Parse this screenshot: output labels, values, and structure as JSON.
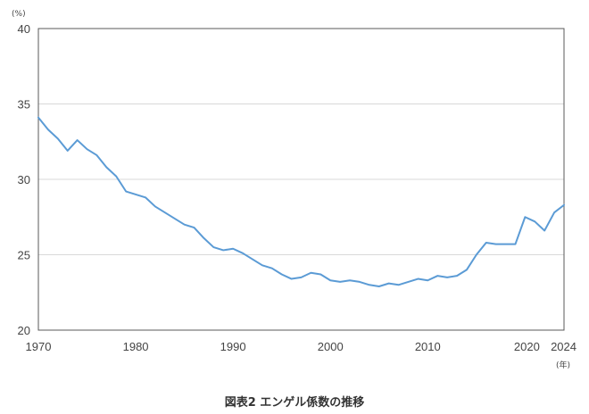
{
  "caption": "図表2 エンゲル係数の推移",
  "colors": {
    "line": "#5b9bd5",
    "grid": "#d9d9d9",
    "frame": "#595959"
  },
  "chart_data": {
    "type": "line",
    "title": "",
    "ylabel_unit": "(%)",
    "xlabel_unit": "(年)",
    "ylim": [
      20,
      40
    ],
    "xlim": [
      1970,
      2024
    ],
    "yticks": [
      20,
      25,
      30,
      35,
      40
    ],
    "xticks": [
      1970,
      1980,
      1990,
      2000,
      2010,
      2020,
      2024
    ],
    "grid": "horizontal",
    "legend": "none",
    "x": [
      1970,
      1971,
      1972,
      1973,
      1974,
      1975,
      1976,
      1977,
      1978,
      1979,
      1980,
      1981,
      1982,
      1983,
      1984,
      1985,
      1986,
      1987,
      1988,
      1989,
      1990,
      1991,
      1992,
      1993,
      1994,
      1995,
      1996,
      1997,
      1998,
      1999,
      2000,
      2001,
      2002,
      2003,
      2004,
      2005,
      2006,
      2007,
      2008,
      2009,
      2010,
      2011,
      2012,
      2013,
      2014,
      2015,
      2016,
      2017,
      2018,
      2019,
      2020,
      2021,
      2022,
      2023,
      2024
    ],
    "series": [
      {
        "values": [
          34.1,
          33.3,
          32.7,
          31.9,
          32.6,
          32.0,
          31.6,
          30.8,
          30.2,
          29.2,
          29.0,
          28.8,
          28.2,
          27.8,
          27.4,
          27.0,
          26.8,
          26.1,
          25.5,
          25.3,
          25.4,
          25.1,
          24.7,
          24.3,
          24.1,
          23.7,
          23.4,
          23.5,
          23.8,
          23.7,
          23.3,
          23.2,
          23.3,
          23.2,
          23.0,
          22.9,
          23.1,
          23.0,
          23.2,
          23.4,
          23.3,
          23.6,
          23.5,
          23.6,
          24.0,
          25.0,
          25.8,
          25.7,
          25.7,
          25.7,
          27.5,
          27.2,
          26.6,
          27.8,
          28.3
        ]
      }
    ]
  }
}
